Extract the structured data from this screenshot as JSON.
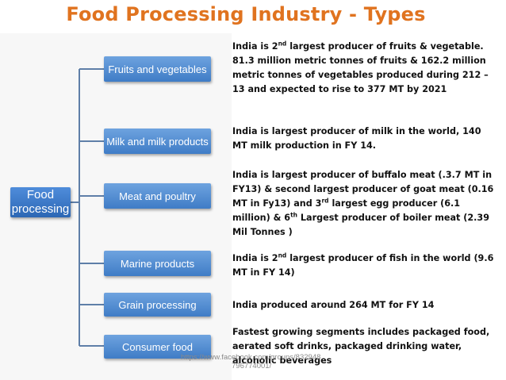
{
  "title": "Food Processing Industry -  Types",
  "root": {
    "label_line1": "Food",
    "label_line2": "processing"
  },
  "branches": [
    {
      "label": "Fruits and vegetables"
    },
    {
      "label": "Milk and milk products"
    },
    {
      "label": "Meat and poultry"
    },
    {
      "label": "Marine products"
    },
    {
      "label": "Grain processing"
    },
    {
      "label": "Consumer food"
    }
  ],
  "descriptions": {
    "fruits": {
      "p1": "India is 2",
      "sup1": "nd",
      "p2": " largest producer of fruits & vegetable.  81.3 million metric tonnes of fruits & 162.2 million metric tonnes of vegetables produced during 212 – 13 and expected to rise to 377 MT by 2021"
    },
    "milk": {
      "p1": "India is largest producer of milk in the world, 140 MT milk production in FY 14."
    },
    "meat": {
      "p1": "India is largest producer of buffalo meat (.3.7 MT in FY13) & second largest producer of goat meat (0.16 MT in Fy13) and 3",
      "sup1": "rd",
      "p2": " largest egg producer (6.1 million) & 6",
      "sup2": "th",
      "p3": " Largest producer of boiler meat (2.39 Mil Tonnes )"
    },
    "marine": {
      "p1": "India is 2",
      "sup1": "nd",
      "p2": " largest producer of fish in the world (9.6 MT in FY 14)"
    },
    "grain": {
      "p1": "India produced around 264 MT for FY 14"
    },
    "consumer": {
      "p1": "Fastest growing segments includes packaged food, aerated soft drinks, packaged drinking water, alcoholic beverages"
    }
  },
  "watermark": {
    "line1": "https://www.facebook.com/groups/832948",
    "line2": "796774001/"
  },
  "colors": {
    "title": "#e0731f",
    "box_top": "#6ea3df",
    "box_bottom": "#3f7cc6",
    "connector": "#5f7fa8"
  }
}
